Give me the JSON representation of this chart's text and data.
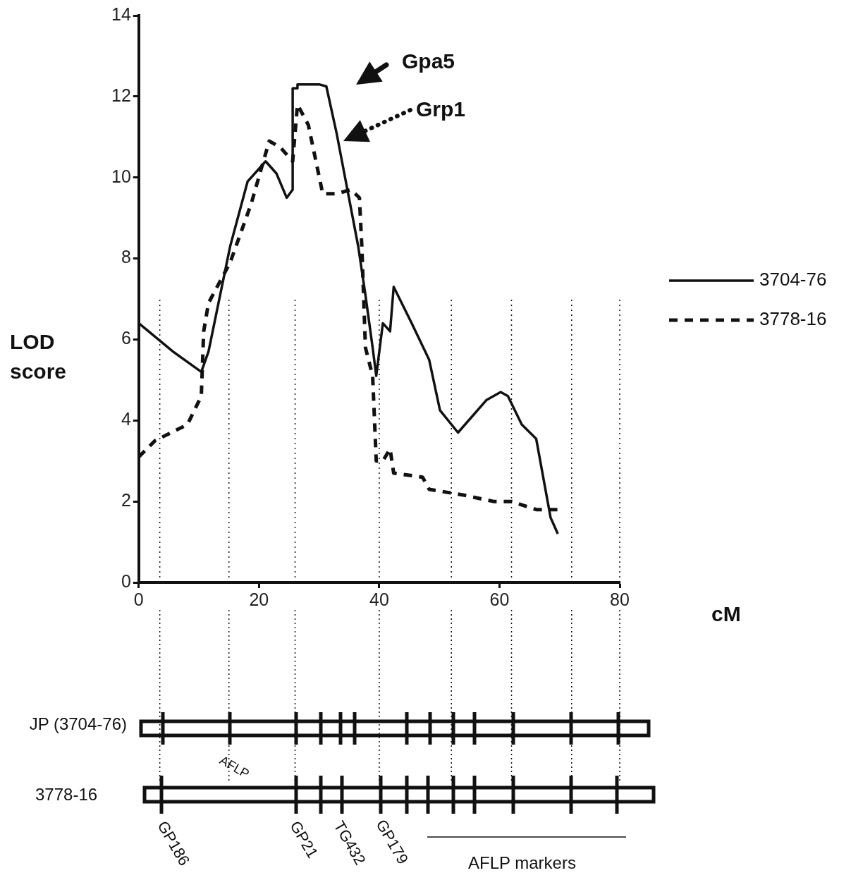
{
  "chart_data": {
    "type": "line",
    "xlabel": "cM",
    "ylabel": "LOD score",
    "xlim": [
      0,
      80
    ],
    "ylim": [
      0,
      14
    ],
    "xticks": [
      0,
      20,
      40,
      60,
      80
    ],
    "yticks": [
      0,
      2,
      4,
      6,
      8,
      10,
      12,
      14
    ],
    "grid": false,
    "legend": "right",
    "marker": "none",
    "series": [
      {
        "name": "3704-76",
        "color": "#111111",
        "line_style": "solid",
        "x": [
          0,
          5.7,
          10.4,
          11.6,
          15.2,
          18.1,
          21.1,
          22.9,
          24.6,
          25.6,
          25.6,
          26.4,
          26.4,
          30,
          31.2,
          32.9,
          34.7,
          36.5,
          37.7,
          38.9,
          39.5,
          40.6,
          41.8,
          42.4,
          45.4,
          48.3,
          50.1,
          53.1,
          57.8,
          60.2,
          61.4,
          63.7,
          66.1,
          68.5,
          69.7
        ],
        "values": [
          6.4,
          5.7,
          5.2,
          5.7,
          8.3,
          9.9,
          10.4,
          10.1,
          9.5,
          9.7,
          12.2,
          12.2,
          12.3,
          12.3,
          12.25,
          11.1,
          9.7,
          8.3,
          7.1,
          5.8,
          5.1,
          6.4,
          6.2,
          7.3,
          6.4,
          5.5,
          4.25,
          3.7,
          4.5,
          4.7,
          4.6,
          3.9,
          3.55,
          1.6,
          1.2
        ]
      },
      {
        "name": "3778-16",
        "color": "#111111",
        "line_style": "dashed",
        "x": [
          0,
          2.7,
          8.1,
          10.4,
          10.8,
          11.6,
          15.2,
          18.7,
          21.7,
          23.5,
          25.6,
          26.4,
          28.2,
          30.6,
          32.9,
          35.3,
          36.7,
          37.1,
          37.7,
          38.9,
          39.5,
          40.6,
          41.8,
          42.4,
          47.2,
          48.3,
          54.3,
          59,
          62,
          66.1,
          69.7
        ],
        "values": [
          3.1,
          3.5,
          3.9,
          4.6,
          6.2,
          6.9,
          7.9,
          9.35,
          10.9,
          10.75,
          10.4,
          11.8,
          11.3,
          9.6,
          9.6,
          9.7,
          9.5,
          8.3,
          5.8,
          5.1,
          3.0,
          3.0,
          3.3,
          2.7,
          2.6,
          2.3,
          2.15,
          2.0,
          2.0,
          1.8,
          1.8
        ]
      }
    ],
    "ref_lines": [
      {
        "axis": "x",
        "value": 3.5,
        "line_style": "dotted"
      },
      {
        "axis": "x",
        "value": 15,
        "line_style": "dotted"
      },
      {
        "axis": "x",
        "value": 26,
        "line_style": "dotted"
      },
      {
        "axis": "x",
        "value": 40,
        "line_style": "dotted"
      },
      {
        "axis": "x",
        "value": 52,
        "line_style": "dotted"
      },
      {
        "axis": "x",
        "value": 62,
        "line_style": "dotted"
      },
      {
        "axis": "x",
        "value": 72,
        "line_style": "dotted"
      },
      {
        "axis": "x",
        "value": 80,
        "line_style": "dotted"
      }
    ],
    "annotations": [
      "Gpa5",
      "Grp1",
      "JP (3704-76)",
      "3778-16",
      "AFLP",
      "GP186",
      "GP21",
      "TG432",
      "GP179",
      "AFLP markers"
    ]
  }
}
